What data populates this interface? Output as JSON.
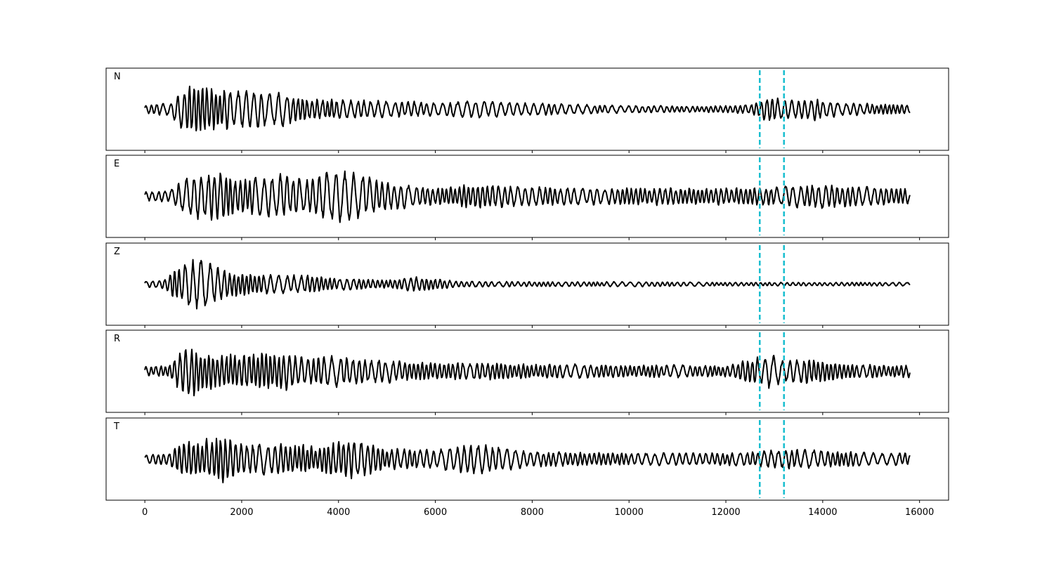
{
  "chart_data": {
    "type": "line",
    "layout": "stacked-panels",
    "x_ticks": [
      0,
      2000,
      4000,
      6000,
      8000,
      10000,
      12000,
      14000,
      16000
    ],
    "x_tick_labels": [
      "0",
      "2000",
      "4000",
      "6000",
      "8000",
      "10000",
      "12000",
      "14000",
      "16000"
    ],
    "xlim": [
      -800,
      16600
    ],
    "x_range": [
      0,
      15800
    ],
    "series_color": "#000000",
    "marker_color": "#17BECF",
    "vertical_markers": [
      12700,
      13200
    ],
    "grid": false,
    "panels": [
      {
        "label": "N",
        "envelope": [
          [
            0,
            0.15
          ],
          [
            500,
            0.2
          ],
          [
            700,
            0.55
          ],
          [
            1000,
            0.9
          ],
          [
            1300,
            0.75
          ],
          [
            2000,
            0.6
          ],
          [
            2800,
            0.55
          ],
          [
            3400,
            0.35
          ],
          [
            4500,
            0.3
          ],
          [
            6000,
            0.22
          ],
          [
            6800,
            0.3
          ],
          [
            8000,
            0.2
          ],
          [
            10000,
            0.12
          ],
          [
            11500,
            0.1
          ],
          [
            12500,
            0.15
          ],
          [
            12900,
            0.45
          ],
          [
            13200,
            0.3
          ],
          [
            13800,
            0.35
          ],
          [
            14500,
            0.2
          ],
          [
            15800,
            0.15
          ]
        ]
      },
      {
        "label": "E",
        "envelope": [
          [
            0,
            0.15
          ],
          [
            500,
            0.2
          ],
          [
            700,
            0.45
          ],
          [
            1000,
            0.7
          ],
          [
            1600,
            0.8
          ],
          [
            2000,
            0.55
          ],
          [
            2800,
            0.7
          ],
          [
            3400,
            0.55
          ],
          [
            3800,
            0.85
          ],
          [
            4300,
            0.75
          ],
          [
            5000,
            0.45
          ],
          [
            6000,
            0.3
          ],
          [
            6800,
            0.4
          ],
          [
            8000,
            0.3
          ],
          [
            10000,
            0.28
          ],
          [
            12000,
            0.28
          ],
          [
            13000,
            0.3
          ],
          [
            13900,
            0.4
          ],
          [
            15000,
            0.3
          ],
          [
            15800,
            0.25
          ]
        ]
      },
      {
        "label": "Z",
        "envelope": [
          [
            0,
            0.1
          ],
          [
            400,
            0.15
          ],
          [
            600,
            0.5
          ],
          [
            900,
            0.75
          ],
          [
            1200,
            0.85
          ],
          [
            1600,
            0.45
          ],
          [
            2200,
            0.35
          ],
          [
            2800,
            0.3
          ],
          [
            3300,
            0.3
          ],
          [
            4000,
            0.2
          ],
          [
            5000,
            0.14
          ],
          [
            5600,
            0.25
          ],
          [
            6500,
            0.1
          ],
          [
            8000,
            0.08
          ],
          [
            10000,
            0.08
          ],
          [
            12000,
            0.06
          ],
          [
            14000,
            0.06
          ],
          [
            15800,
            0.06
          ]
        ]
      },
      {
        "label": "R",
        "envelope": [
          [
            0,
            0.15
          ],
          [
            500,
            0.2
          ],
          [
            700,
            0.6
          ],
          [
            1000,
            0.85
          ],
          [
            1300,
            0.6
          ],
          [
            2000,
            0.6
          ],
          [
            2800,
            0.65
          ],
          [
            3300,
            0.45
          ],
          [
            3900,
            0.5
          ],
          [
            4500,
            0.4
          ],
          [
            6000,
            0.3
          ],
          [
            7000,
            0.3
          ],
          [
            8000,
            0.25
          ],
          [
            10000,
            0.2
          ],
          [
            12000,
            0.2
          ],
          [
            12900,
            0.55
          ],
          [
            13200,
            0.35
          ],
          [
            13800,
            0.4
          ],
          [
            14500,
            0.25
          ],
          [
            15800,
            0.2
          ]
        ]
      },
      {
        "label": "T",
        "envelope": [
          [
            0,
            0.15
          ],
          [
            500,
            0.2
          ],
          [
            800,
            0.6
          ],
          [
            1200,
            0.6
          ],
          [
            1600,
            0.85
          ],
          [
            2000,
            0.5
          ],
          [
            2800,
            0.5
          ],
          [
            3600,
            0.45
          ],
          [
            4200,
            0.7
          ],
          [
            5000,
            0.35
          ],
          [
            6000,
            0.3
          ],
          [
            6800,
            0.5
          ],
          [
            8000,
            0.25
          ],
          [
            10000,
            0.2
          ],
          [
            12000,
            0.2
          ],
          [
            13200,
            0.3
          ],
          [
            13900,
            0.3
          ],
          [
            15000,
            0.2
          ],
          [
            15800,
            0.2
          ]
        ]
      }
    ]
  }
}
